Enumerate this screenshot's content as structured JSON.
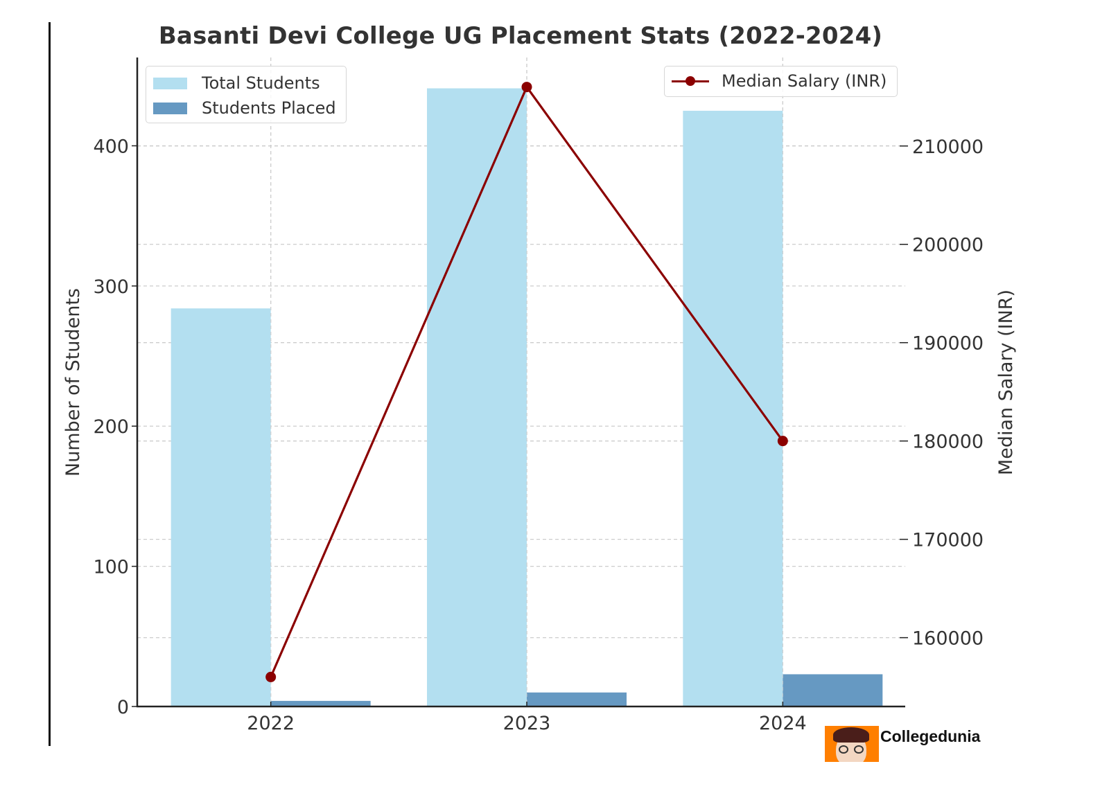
{
  "chart_data": {
    "type": "bar",
    "combo": "bar+line (dual axis)",
    "title": "Basanti Devi College UG Placement Stats (2022-2024)",
    "categories": [
      "2022",
      "2023",
      "2024"
    ],
    "xlabel": "",
    "ylabel": "Number of Students",
    "y2label": "Median Salary (INR)",
    "ylim": [
      0,
      463
    ],
    "y2lim": [
      153000,
      219000
    ],
    "yticks": [
      0,
      100,
      200,
      300,
      400
    ],
    "y2ticks": [
      160000,
      170000,
      180000,
      190000,
      200000,
      210000
    ],
    "grid": true,
    "series": [
      {
        "name": "Total Students",
        "type": "bar",
        "axis": "left",
        "color": "#b3dff0",
        "values": [
          284,
          441,
          425
        ]
      },
      {
        "name": "Students Placed",
        "type": "bar",
        "axis": "left",
        "color": "#6699c2",
        "values": [
          4,
          10,
          23
        ]
      },
      {
        "name": "Median Salary (INR)",
        "type": "line",
        "axis": "right",
        "color": "#8b0000",
        "marker": "circle",
        "values": [
          156000,
          216000,
          180000
        ]
      }
    ],
    "legend": [
      {
        "position": "upper left",
        "entries": [
          "Total Students",
          "Students Placed"
        ]
      },
      {
        "position": "upper right",
        "entries": [
          "Median Salary (INR)"
        ]
      }
    ]
  },
  "title": "Basanti Devi College UG Placement Stats (2022-2024)",
  "axes": {
    "left_label": "Number of Students",
    "right_label": "Median Salary (INR)",
    "left_ticks": [
      "0",
      "100",
      "200",
      "300",
      "400"
    ],
    "right_ticks": [
      "160000",
      "170000",
      "180000",
      "190000",
      "200000",
      "210000"
    ],
    "x_ticks": [
      "2022",
      "2023",
      "2024"
    ]
  },
  "legend_left": {
    "items": [
      {
        "label": "Total Students",
        "color": "#b3dff0"
      },
      {
        "label": "Students Placed",
        "color": "#6699c2"
      }
    ]
  },
  "legend_right": {
    "items": [
      {
        "label": "Median Salary (INR)",
        "color": "#8b0000"
      }
    ]
  },
  "watermark": {
    "text": "Collegedunia",
    "badge_color": "#ff7f00"
  }
}
